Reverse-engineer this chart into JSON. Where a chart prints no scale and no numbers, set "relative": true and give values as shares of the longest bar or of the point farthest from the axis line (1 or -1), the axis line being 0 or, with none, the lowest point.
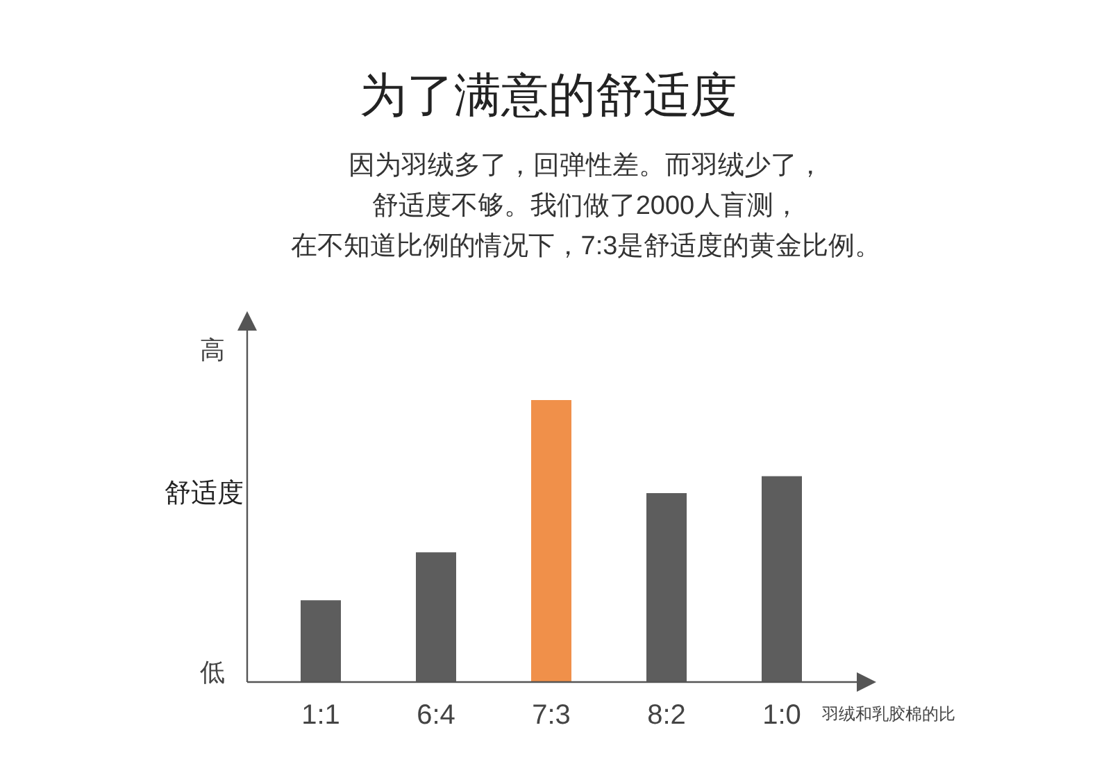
{
  "chart_data": {
    "type": "bar",
    "title": "为了满意的舒适度",
    "subtitle": "因为羽绒多了，回弹性差。而羽绒少了，",
    "ylabel": "舒适度",
    "xlabel": "羽绒和乳胶棉的比",
    "annotations": [
      "舒适度不够。我们做了2000人盲测，",
      "在不知道比例的情况下，7:3是舒适度的黄金比例。",
      "高",
      "低"
    ],
    "relative": true,
    "categories": [
      "1:1",
      "6:4",
      "7:3",
      "8:2",
      "1:0"
    ],
    "values": [
      0.29,
      0.46,
      1,
      0.67,
      0.73
    ],
    "colors": [
      "#5d5d5d",
      "#5d5d5d",
      "#f0904a",
      "#5d5d5d",
      "#5d5d5d"
    ]
  }
}
